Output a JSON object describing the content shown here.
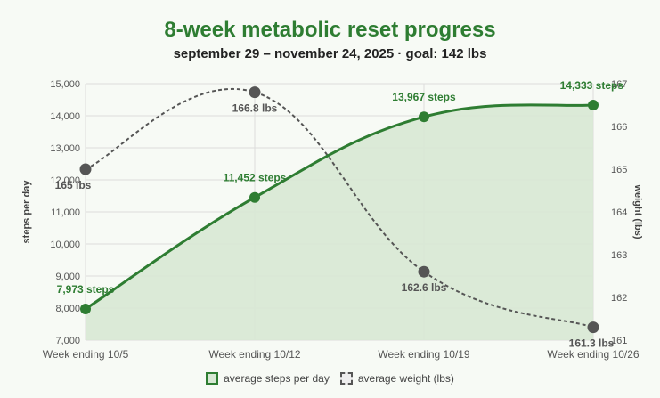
{
  "header": {
    "title": "8-week metabolic reset progress",
    "subtitle": "september 29 – november 24, 2025 · goal: 142 lbs"
  },
  "legend": {
    "steps_label": "average steps per day",
    "weight_label": "average weight (lbs)"
  },
  "colors": {
    "steps_line": "#2e7d32",
    "steps_fill": "#d7e8d4",
    "weight_line": "#555555",
    "weight_point": "#555555",
    "grid": "#dcdcdc",
    "axis_text": "#555555"
  },
  "chart_data": {
    "type": "line",
    "categories": [
      "Week ending 10/5",
      "Week ending 10/12",
      "Week ending 10/19",
      "Week ending 10/26"
    ],
    "series": [
      {
        "name": "average steps per day",
        "axis": "left",
        "style": "solid-area",
        "values": [
          7973,
          11452,
          13967,
          14333
        ],
        "labels": [
          "7,973 steps",
          "11,452 steps",
          "13,967 steps",
          "14,333 steps"
        ]
      },
      {
        "name": "average weight (lbs)",
        "axis": "right",
        "style": "dashed",
        "values": [
          165,
          166.8,
          162.6,
          161.3
        ],
        "labels": [
          "165 lbs",
          "166.8 lbs",
          "162.6 lbs",
          "161.3 lbs"
        ]
      }
    ],
    "ylabel": "steps per day",
    "y2label": "weight (lbs)",
    "ylim": [
      7000,
      15000
    ],
    "y2lim": [
      161,
      167
    ],
    "yticks": [
      "7,000",
      "8,000",
      "9,000",
      "10,000",
      "11,000",
      "12,000",
      "13,000",
      "14,000",
      "15,000"
    ],
    "y2ticks": [
      "161",
      "162",
      "163",
      "164",
      "165",
      "166",
      "167"
    ],
    "grid": true,
    "legend_position": "bottom"
  }
}
